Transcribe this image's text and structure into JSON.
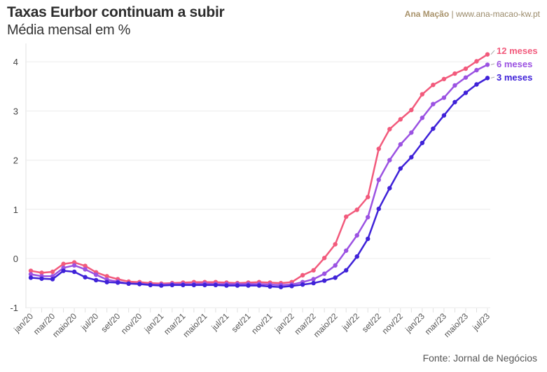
{
  "chart_data": {
    "type": "line",
    "title": "Taxas Eurbor continuam a subir",
    "subtitle": "Média mensal em %",
    "credit_name": "Ana Mação",
    "credit_url": "www.ana-macao-kw.pt",
    "source": "Fonte: Jornal de Negócios",
    "ylim": [
      -1,
      4.3
    ],
    "yticks": [
      -1,
      0,
      1,
      2,
      3,
      4
    ],
    "grid": true,
    "legend": "right, labels at line ends",
    "x": [
      "jan/20",
      "fev/20",
      "mar/20",
      "abr/20",
      "maio/20",
      "jun/20",
      "jul/20",
      "ago/20",
      "set/20",
      "out/20",
      "nov/20",
      "dez/20",
      "jan/21",
      "fev/21",
      "mar/21",
      "abr/21",
      "maio/21",
      "jun/21",
      "jul/21",
      "ago/21",
      "set/21",
      "out/21",
      "nov/21",
      "dez/21",
      "jan/22",
      "fev/22",
      "mar/22",
      "abr/22",
      "maio/22",
      "jun/22",
      "jul/22",
      "ago/22",
      "set/22",
      "out/22",
      "nov/22",
      "dez/22",
      "jan/23",
      "fev/23",
      "mar/23",
      "abr/23",
      "maio/23",
      "jun/23",
      "jul/23"
    ],
    "xtick_labels": [
      "jan/20",
      "mar/20",
      "maio/20",
      "jul/20",
      "set/20",
      "nov/20",
      "jan/21",
      "mar/21",
      "maio/21",
      "jul/21",
      "set/21",
      "nov/21",
      "jan/22",
      "mar/22",
      "maio/22",
      "jul/22",
      "set/22",
      "nov/22",
      "jan/23",
      "mar/23",
      "maio/23",
      "jul/23"
    ],
    "series": [
      {
        "name": "12 meses",
        "color": "#f25a7c",
        "values": [
          -0.25,
          -0.29,
          -0.27,
          -0.11,
          -0.08,
          -0.15,
          -0.28,
          -0.36,
          -0.42,
          -0.47,
          -0.48,
          -0.5,
          -0.51,
          -0.5,
          -0.49,
          -0.48,
          -0.48,
          -0.48,
          -0.49,
          -0.5,
          -0.49,
          -0.48,
          -0.49,
          -0.5,
          -0.48,
          -0.34,
          -0.24,
          0.01,
          0.29,
          0.85,
          0.99,
          1.25,
          2.23,
          2.63,
          2.83,
          3.02,
          3.34,
          3.53,
          3.65,
          3.76,
          3.86,
          4.01,
          4.15
        ]
      },
      {
        "name": "6 meses",
        "color": "#9b52e2",
        "values": [
          -0.32,
          -0.36,
          -0.36,
          -0.19,
          -0.14,
          -0.22,
          -0.33,
          -0.43,
          -0.47,
          -0.51,
          -0.51,
          -0.53,
          -0.53,
          -0.52,
          -0.52,
          -0.52,
          -0.51,
          -0.52,
          -0.52,
          -0.52,
          -0.52,
          -0.52,
          -0.53,
          -0.54,
          -0.53,
          -0.48,
          -0.42,
          -0.31,
          -0.14,
          0.16,
          0.47,
          0.84,
          1.6,
          2.0,
          2.32,
          2.56,
          2.86,
          3.14,
          3.27,
          3.52,
          3.68,
          3.83,
          3.94
        ]
      },
      {
        "name": "3 meses",
        "color": "#3f22d8",
        "values": [
          -0.39,
          -0.41,
          -0.42,
          -0.25,
          -0.27,
          -0.38,
          -0.44,
          -0.48,
          -0.49,
          -0.51,
          -0.52,
          -0.54,
          -0.55,
          -0.54,
          -0.54,
          -0.54,
          -0.54,
          -0.54,
          -0.55,
          -0.55,
          -0.55,
          -0.55,
          -0.57,
          -0.58,
          -0.56,
          -0.53,
          -0.5,
          -0.45,
          -0.39,
          -0.24,
          0.04,
          0.4,
          1.01,
          1.43,
          1.83,
          2.06,
          2.35,
          2.64,
          2.91,
          3.18,
          3.37,
          3.54,
          3.67
        ]
      }
    ]
  }
}
